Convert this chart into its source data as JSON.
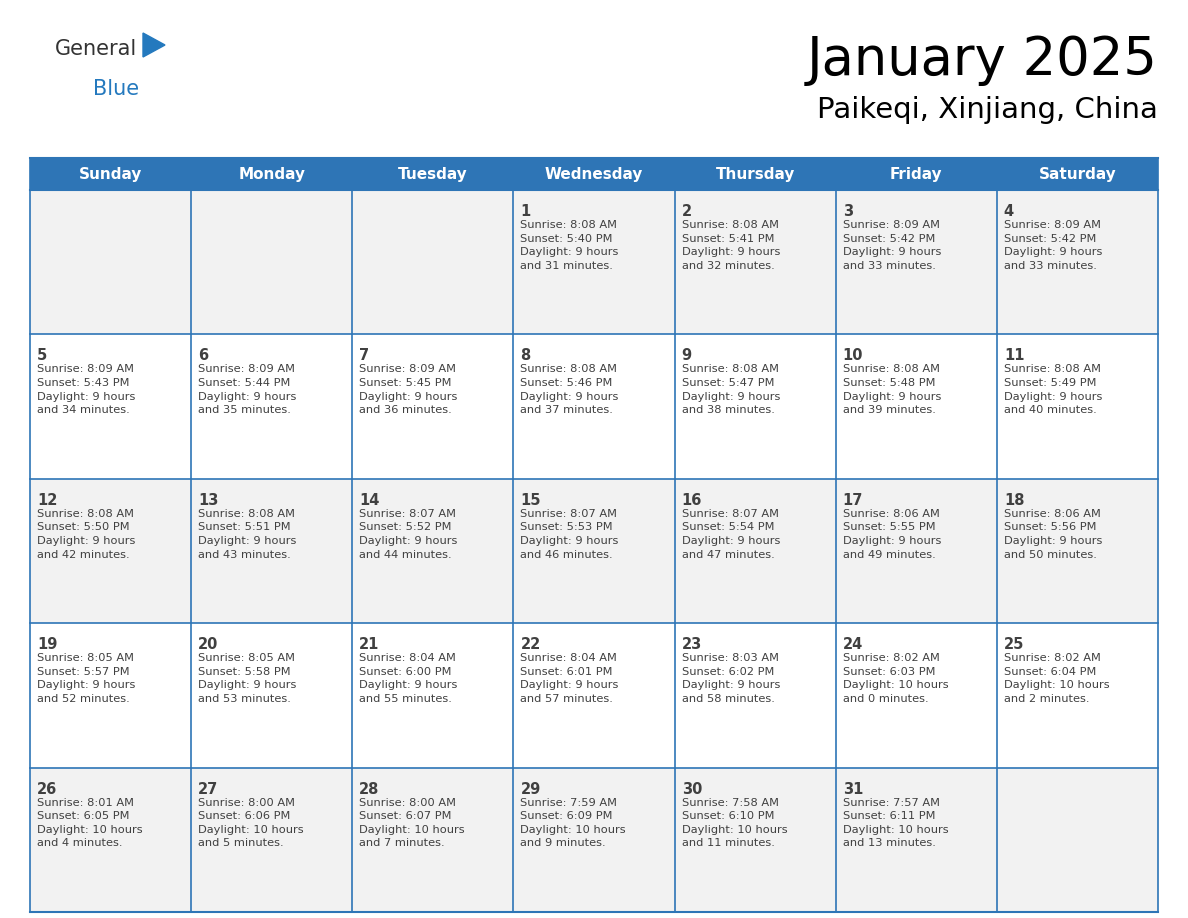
{
  "title": "January 2025",
  "subtitle": "Paikeqi, Xinjiang, China",
  "header_bg": "#2E75B6",
  "header_text_color": "#FFFFFF",
  "cell_bg_white": "#FFFFFF",
  "cell_bg_gray": "#F2F2F2",
  "grid_color": "#2E75B6",
  "text_color": "#404040",
  "day_headers": [
    "Sunday",
    "Monday",
    "Tuesday",
    "Wednesday",
    "Thursday",
    "Friday",
    "Saturday"
  ],
  "weeks": [
    [
      {
        "day": "",
        "info": ""
      },
      {
        "day": "",
        "info": ""
      },
      {
        "day": "",
        "info": ""
      },
      {
        "day": "1",
        "info": "Sunrise: 8:08 AM\nSunset: 5:40 PM\nDaylight: 9 hours\nand 31 minutes."
      },
      {
        "day": "2",
        "info": "Sunrise: 8:08 AM\nSunset: 5:41 PM\nDaylight: 9 hours\nand 32 minutes."
      },
      {
        "day": "3",
        "info": "Sunrise: 8:09 AM\nSunset: 5:42 PM\nDaylight: 9 hours\nand 33 minutes."
      },
      {
        "day": "4",
        "info": "Sunrise: 8:09 AM\nSunset: 5:42 PM\nDaylight: 9 hours\nand 33 minutes."
      }
    ],
    [
      {
        "day": "5",
        "info": "Sunrise: 8:09 AM\nSunset: 5:43 PM\nDaylight: 9 hours\nand 34 minutes."
      },
      {
        "day": "6",
        "info": "Sunrise: 8:09 AM\nSunset: 5:44 PM\nDaylight: 9 hours\nand 35 minutes."
      },
      {
        "day": "7",
        "info": "Sunrise: 8:09 AM\nSunset: 5:45 PM\nDaylight: 9 hours\nand 36 minutes."
      },
      {
        "day": "8",
        "info": "Sunrise: 8:08 AM\nSunset: 5:46 PM\nDaylight: 9 hours\nand 37 minutes."
      },
      {
        "day": "9",
        "info": "Sunrise: 8:08 AM\nSunset: 5:47 PM\nDaylight: 9 hours\nand 38 minutes."
      },
      {
        "day": "10",
        "info": "Sunrise: 8:08 AM\nSunset: 5:48 PM\nDaylight: 9 hours\nand 39 minutes."
      },
      {
        "day": "11",
        "info": "Sunrise: 8:08 AM\nSunset: 5:49 PM\nDaylight: 9 hours\nand 40 minutes."
      }
    ],
    [
      {
        "day": "12",
        "info": "Sunrise: 8:08 AM\nSunset: 5:50 PM\nDaylight: 9 hours\nand 42 minutes."
      },
      {
        "day": "13",
        "info": "Sunrise: 8:08 AM\nSunset: 5:51 PM\nDaylight: 9 hours\nand 43 minutes."
      },
      {
        "day": "14",
        "info": "Sunrise: 8:07 AM\nSunset: 5:52 PM\nDaylight: 9 hours\nand 44 minutes."
      },
      {
        "day": "15",
        "info": "Sunrise: 8:07 AM\nSunset: 5:53 PM\nDaylight: 9 hours\nand 46 minutes."
      },
      {
        "day": "16",
        "info": "Sunrise: 8:07 AM\nSunset: 5:54 PM\nDaylight: 9 hours\nand 47 minutes."
      },
      {
        "day": "17",
        "info": "Sunrise: 8:06 AM\nSunset: 5:55 PM\nDaylight: 9 hours\nand 49 minutes."
      },
      {
        "day": "18",
        "info": "Sunrise: 8:06 AM\nSunset: 5:56 PM\nDaylight: 9 hours\nand 50 minutes."
      }
    ],
    [
      {
        "day": "19",
        "info": "Sunrise: 8:05 AM\nSunset: 5:57 PM\nDaylight: 9 hours\nand 52 minutes."
      },
      {
        "day": "20",
        "info": "Sunrise: 8:05 AM\nSunset: 5:58 PM\nDaylight: 9 hours\nand 53 minutes."
      },
      {
        "day": "21",
        "info": "Sunrise: 8:04 AM\nSunset: 6:00 PM\nDaylight: 9 hours\nand 55 minutes."
      },
      {
        "day": "22",
        "info": "Sunrise: 8:04 AM\nSunset: 6:01 PM\nDaylight: 9 hours\nand 57 minutes."
      },
      {
        "day": "23",
        "info": "Sunrise: 8:03 AM\nSunset: 6:02 PM\nDaylight: 9 hours\nand 58 minutes."
      },
      {
        "day": "24",
        "info": "Sunrise: 8:02 AM\nSunset: 6:03 PM\nDaylight: 10 hours\nand 0 minutes."
      },
      {
        "day": "25",
        "info": "Sunrise: 8:02 AM\nSunset: 6:04 PM\nDaylight: 10 hours\nand 2 minutes."
      }
    ],
    [
      {
        "day": "26",
        "info": "Sunrise: 8:01 AM\nSunset: 6:05 PM\nDaylight: 10 hours\nand 4 minutes."
      },
      {
        "day": "27",
        "info": "Sunrise: 8:00 AM\nSunset: 6:06 PM\nDaylight: 10 hours\nand 5 minutes."
      },
      {
        "day": "28",
        "info": "Sunrise: 8:00 AM\nSunset: 6:07 PM\nDaylight: 10 hours\nand 7 minutes."
      },
      {
        "day": "29",
        "info": "Sunrise: 7:59 AM\nSunset: 6:09 PM\nDaylight: 10 hours\nand 9 minutes."
      },
      {
        "day": "30",
        "info": "Sunrise: 7:58 AM\nSunset: 6:10 PM\nDaylight: 10 hours\nand 11 minutes."
      },
      {
        "day": "31",
        "info": "Sunrise: 7:57 AM\nSunset: 6:11 PM\nDaylight: 10 hours\nand 13 minutes."
      },
      {
        "day": "",
        "info": ""
      }
    ]
  ],
  "logo_general_color": "#333333",
  "logo_blue_color": "#2479BE",
  "title_fontsize": 38,
  "subtitle_fontsize": 21,
  "header_fontsize": 11,
  "day_num_fontsize": 10.5,
  "info_fontsize": 8.2
}
